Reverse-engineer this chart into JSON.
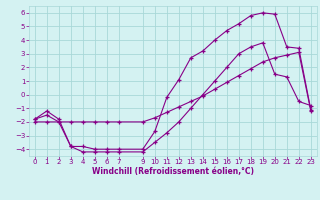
{
  "xlabel": "Windchill (Refroidissement éolien,°C)",
  "bg_color": "#d4f2f2",
  "grid_color": "#a8d8d8",
  "line_color": "#880088",
  "xlim": [
    -0.5,
    23.5
  ],
  "ylim": [
    -4.5,
    6.5
  ],
  "xticks": [
    0,
    1,
    2,
    3,
    4,
    5,
    6,
    7,
    9,
    10,
    11,
    12,
    13,
    14,
    15,
    16,
    17,
    18,
    19,
    20,
    21,
    22,
    23
  ],
  "yticks": [
    -4,
    -3,
    -2,
    -1,
    0,
    1,
    2,
    3,
    4,
    5,
    6
  ],
  "line1_x": [
    0,
    1,
    2,
    3,
    4,
    5,
    6,
    7,
    9,
    10,
    11,
    12,
    13,
    14,
    15,
    16,
    17,
    18,
    19,
    20,
    21,
    22,
    23
  ],
  "line1_y": [
    -1.8,
    -1.2,
    -1.8,
    -3.8,
    -3.8,
    -4.0,
    -4.0,
    -4.0,
    -4.0,
    -2.7,
    -0.2,
    1.1,
    2.7,
    3.2,
    4.0,
    4.7,
    5.2,
    5.8,
    6.0,
    5.9,
    3.5,
    3.4,
    -1.1
  ],
  "line2_x": [
    0,
    1,
    2,
    3,
    4,
    5,
    6,
    7,
    9,
    10,
    11,
    12,
    13,
    14,
    15,
    16,
    17,
    18,
    19,
    20,
    21,
    22,
    23
  ],
  "line2_y": [
    -2.0,
    -2.0,
    -2.0,
    -2.0,
    -2.0,
    -2.0,
    -2.0,
    -2.0,
    -2.0,
    -1.7,
    -1.3,
    -0.9,
    -0.5,
    -0.1,
    0.4,
    0.9,
    1.4,
    1.9,
    2.4,
    2.7,
    2.9,
    3.1,
    -1.2
  ],
  "line3_x": [
    0,
    1,
    2,
    3,
    4,
    5,
    6,
    7,
    9,
    10,
    11,
    12,
    13,
    14,
    15,
    16,
    17,
    18,
    19,
    20,
    21,
    22,
    23
  ],
  "line3_y": [
    -1.8,
    -1.5,
    -2.0,
    -3.8,
    -4.2,
    -4.2,
    -4.2,
    -4.2,
    -4.2,
    -3.5,
    -2.8,
    -2.0,
    -1.0,
    0.0,
    1.0,
    2.0,
    3.0,
    3.5,
    3.8,
    1.5,
    1.3,
    -0.5,
    -0.8
  ]
}
